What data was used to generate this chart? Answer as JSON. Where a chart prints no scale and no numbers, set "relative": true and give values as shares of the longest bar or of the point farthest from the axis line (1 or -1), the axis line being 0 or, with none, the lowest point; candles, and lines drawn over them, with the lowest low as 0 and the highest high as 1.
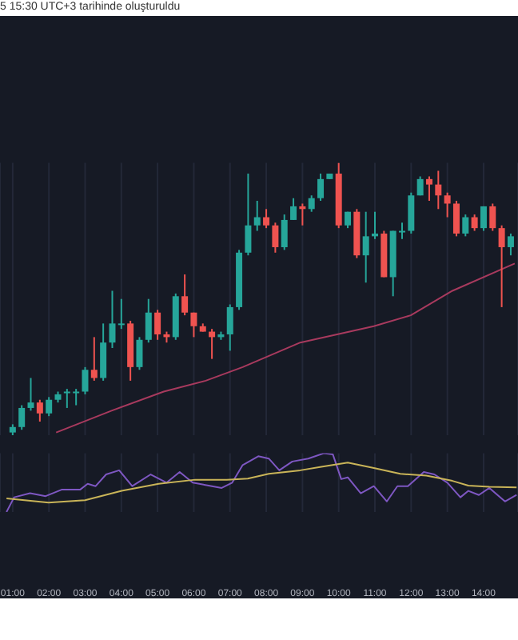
{
  "chart_data": [
    {
      "type": "candlestick",
      "relative": true,
      "annotations": [
        "5 15:30 UTC+3 tarihinde oluşturuldu"
      ],
      "tick_labels": false,
      "grid": "x",
      "xlim": [
        0.65,
        14.95
      ],
      "xticks": [
        {
          "value": 1,
          "label": null
        },
        {
          "value": 2,
          "label": null
        },
        {
          "value": 3,
          "label": null
        },
        {
          "value": 4,
          "label": null
        },
        {
          "value": 5,
          "label": null
        },
        {
          "value": 6,
          "label": null
        },
        {
          "value": 7,
          "label": null
        },
        {
          "value": 8,
          "label": null
        },
        {
          "value": 9,
          "label": null
        },
        {
          "value": 10,
          "label": null
        },
        {
          "value": 11,
          "label": null
        },
        {
          "value": 12,
          "label": null
        },
        {
          "value": 13,
          "label": null
        },
        {
          "value": 14,
          "label": null
        }
      ],
      "x": [
        1,
        1.25,
        1.5,
        1.75,
        2,
        2.25,
        2.5,
        2.75,
        3,
        3.25,
        3.5,
        3.75,
        4,
        4.25,
        4.5,
        4.75,
        5,
        5.25,
        5.5,
        5.75,
        6,
        6.25,
        6.5,
        6.75,
        7,
        7.25,
        7.5,
        7.75,
        8,
        8.25,
        8.5,
        8.75,
        9,
        9.25,
        9.5,
        9.75,
        10,
        10.25,
        10.5,
        10.75,
        11,
        11.25,
        11.5,
        11.75,
        12,
        12.25,
        12.5,
        12.75,
        13,
        13.25,
        13.5,
        13.75,
        14,
        14.25,
        14.5,
        14.75
      ],
      "ohlc": [
        [
          0.01,
          0.04,
          0,
          0.03
        ],
        [
          0.03,
          0.11,
          0.02,
          0.1
        ],
        [
          0.1,
          0.21,
          0.09,
          0.12
        ],
        [
          0.12,
          0.13,
          0.05,
          0.08
        ],
        [
          0.08,
          0.14,
          0.07,
          0.13
        ],
        [
          0.13,
          0.16,
          0.12,
          0.15
        ],
        [
          0.16,
          0.17,
          0.1,
          0.16
        ],
        [
          0.16,
          0.17,
          0.11,
          0.16
        ],
        [
          0.16,
          0.25,
          0.15,
          0.24
        ],
        [
          0.24,
          0.36,
          0.2,
          0.21
        ],
        [
          0.21,
          0.41,
          0.2,
          0.34
        ],
        [
          0.34,
          0.53,
          0.32,
          0.41
        ],
        [
          0.41,
          0.5,
          0.39,
          0.41
        ],
        [
          0.41,
          0.42,
          0.2,
          0.25
        ],
        [
          0.25,
          0.36,
          0.24,
          0.35
        ],
        [
          0.35,
          0.5,
          0.34,
          0.45
        ],
        [
          0.45,
          0.46,
          0.35,
          0.37
        ],
        [
          0.37,
          0.38,
          0.34,
          0.36
        ],
        [
          0.36,
          0.52,
          0.35,
          0.51
        ],
        [
          0.51,
          0.59,
          0.44,
          0.45
        ],
        [
          0.45,
          0.45,
          0.36,
          0.4
        ],
        [
          0.4,
          0.41,
          0.38,
          0.38
        ],
        [
          0.38,
          0.39,
          0.28,
          0.36
        ],
        [
          0.36,
          0.38,
          0.35,
          0.37
        ],
        [
          0.37,
          0.48,
          0.31,
          0.47
        ],
        [
          0.47,
          0.68,
          0.46,
          0.67
        ],
        [
          0.67,
          0.96,
          0.66,
          0.77
        ],
        [
          0.77,
          0.86,
          0.75,
          0.8
        ],
        [
          0.8,
          0.83,
          0.76,
          0.77
        ],
        [
          0.77,
          0.78,
          0.67,
          0.69
        ],
        [
          0.69,
          0.81,
          0.68,
          0.79
        ],
        [
          0.79,
          0.87,
          0.79,
          0.84
        ],
        [
          0.84,
          0.85,
          0.77,
          0.83
        ],
        [
          0.83,
          0.88,
          0.82,
          0.87
        ],
        [
          0.87,
          0.96,
          0.86,
          0.94
        ],
        [
          0.94,
          0.96,
          0.94,
          0.96
        ],
        [
          0.96,
          1,
          0.76,
          0.77
        ],
        [
          0.77,
          0.82,
          0.76,
          0.82
        ],
        [
          0.82,
          0.83,
          0.65,
          0.66
        ],
        [
          0.66,
          0.82,
          0.56,
          0.73
        ],
        [
          0.73,
          0.82,
          0.72,
          0.74
        ],
        [
          0.74,
          0.75,
          0.58,
          0.58
        ],
        [
          0.58,
          0.75,
          0.51,
          0.75
        ],
        [
          0.75,
          0.78,
          0.72,
          0.75
        ],
        [
          0.75,
          0.89,
          0.74,
          0.88
        ],
        [
          0.88,
          0.95,
          0.88,
          0.94
        ],
        [
          0.94,
          0.95,
          0.86,
          0.92
        ],
        [
          0.92,
          0.97,
          0.83,
          0.88
        ],
        [
          0.88,
          0.89,
          0.8,
          0.85
        ],
        [
          0.85,
          0.86,
          0.73,
          0.74
        ],
        [
          0.74,
          0.81,
          0.73,
          0.8
        ],
        [
          0.8,
          0.81,
          0.75,
          0.76
        ],
        [
          0.76,
          0.84,
          0.75,
          0.84
        ],
        [
          0.84,
          0.85,
          0.75,
          0.76
        ],
        [
          0.76,
          0.77,
          0.47,
          0.69
        ],
        [
          0.69,
          0.74,
          0.66,
          0.73
        ]
      ],
      "colors": [
        "#26a69a",
        "#26a69a",
        "#26a69a",
        "#ef5350",
        "#26a69a",
        "#26a69a",
        "#26a69a",
        "#26a69a",
        "#26a69a",
        "#ef5350",
        "#26a69a",
        "#26a69a",
        "#26a69a",
        "#ef5350",
        "#26a69a",
        "#26a69a",
        "#ef5350",
        "#ef5350",
        "#26a69a",
        "#ef5350",
        "#ef5350",
        "#ef5350",
        "#ef5350",
        "#26a69a",
        "#26a69a",
        "#26a69a",
        "#26a69a",
        "#26a69a",
        "#ef5350",
        "#ef5350",
        "#26a69a",
        "#26a69a",
        "#ef5350",
        "#26a69a",
        "#26a69a",
        "#26a69a",
        "#ef5350",
        "#26a69a",
        "#ef5350",
        "#26a69a",
        "#26a69a",
        "#ef5350",
        "#26a69a",
        "#26a69a",
        "#26a69a",
        "#26a69a",
        "#ef5350",
        "#ef5350",
        "#ef5350",
        "#ef5350",
        "#26a69a",
        "#ef5350",
        "#26a69a",
        "#ef5350",
        "#ef5350",
        "#26a69a"
      ],
      "series": [
        {
          "type": "line",
          "color": "#a83a5e",
          "x": [
            2.2,
            3.73,
            5.17,
            6.33,
            7.35,
            8.94,
            10.97,
            11.99,
            13.14,
            14.86
          ],
          "values": [
            0.01,
            0.09,
            0.16,
            0.2,
            0.25,
            0.34,
            0.4,
            0.44,
            0.53,
            0.63
          ]
        }
      ]
    },
    {
      "type": "line",
      "relative": true,
      "tick_labels": "x",
      "grid": "x",
      "xlim": [
        0.65,
        14.95
      ],
      "xticks": [
        {
          "value": 1,
          "label": "01:00"
        },
        {
          "value": 2,
          "label": "02:00"
        },
        {
          "value": 3,
          "label": "03:00"
        },
        {
          "value": 4,
          "label": "04:00"
        },
        {
          "value": 5,
          "label": "05:00"
        },
        {
          "value": 6,
          "label": "06:00"
        },
        {
          "value": 7,
          "label": "07:00"
        },
        {
          "value": 8,
          "label": "08:00"
        },
        {
          "value": 9,
          "label": "09:00"
        },
        {
          "value": 10,
          "label": "10:00"
        },
        {
          "value": 11,
          "label": "11:00"
        },
        {
          "value": 12,
          "label": "12:00"
        },
        {
          "value": 13,
          "label": "13:00"
        },
        {
          "value": 14,
          "label": "14:00"
        }
      ],
      "series": [
        {
          "color": "#7e57c2",
          "x": [
            0.83,
            1.04,
            1.48,
            1.91,
            2.35,
            2.86,
            3.07,
            3.29,
            3.58,
            3.94,
            4.3,
            4.81,
            5.25,
            5.61,
            5.97,
            6.41,
            6.77,
            7.06,
            7.35,
            7.78,
            8.07,
            8.36,
            8.72,
            9.16,
            9.59,
            9.84,
            10.07,
            10.25,
            10.61,
            10.97,
            11.33,
            11.62,
            11.91,
            12.35,
            12.64,
            13,
            13.36,
            13.58,
            13.87,
            14.16,
            14.59,
            14.91
          ],
          "values": [
            0,
            0.25,
            0.32,
            0.27,
            0.38,
            0.38,
            0.48,
            0.44,
            0.64,
            0.71,
            0.44,
            0.64,
            0.5,
            0.68,
            0.5,
            0.45,
            0.41,
            0.5,
            0.8,
            0.95,
            0.91,
            0.71,
            0.86,
            0.91,
            1,
            0.98,
            0.56,
            0.59,
            0.32,
            0.44,
            0.18,
            0.44,
            0.44,
            0.68,
            0.64,
            0.5,
            0.25,
            0.36,
            0.29,
            0.41,
            0.18,
            0.29
          ]
        },
        {
          "color": "#c9b458",
          "x": [
            0.83,
            1.99,
            3,
            4.01,
            5.03,
            6.04,
            6.91,
            7.49,
            8.07,
            8.94,
            9.52,
            10.25,
            10.97,
            11.7,
            12.42,
            13.14,
            13.58,
            14.16,
            14.91
          ],
          "values": [
            0.23,
            0.16,
            0.2,
            0.36,
            0.48,
            0.55,
            0.55,
            0.57,
            0.65,
            0.71,
            0.77,
            0.84,
            0.75,
            0.65,
            0.62,
            0.53,
            0.45,
            0.43,
            0.42
          ]
        }
      ]
    }
  ]
}
